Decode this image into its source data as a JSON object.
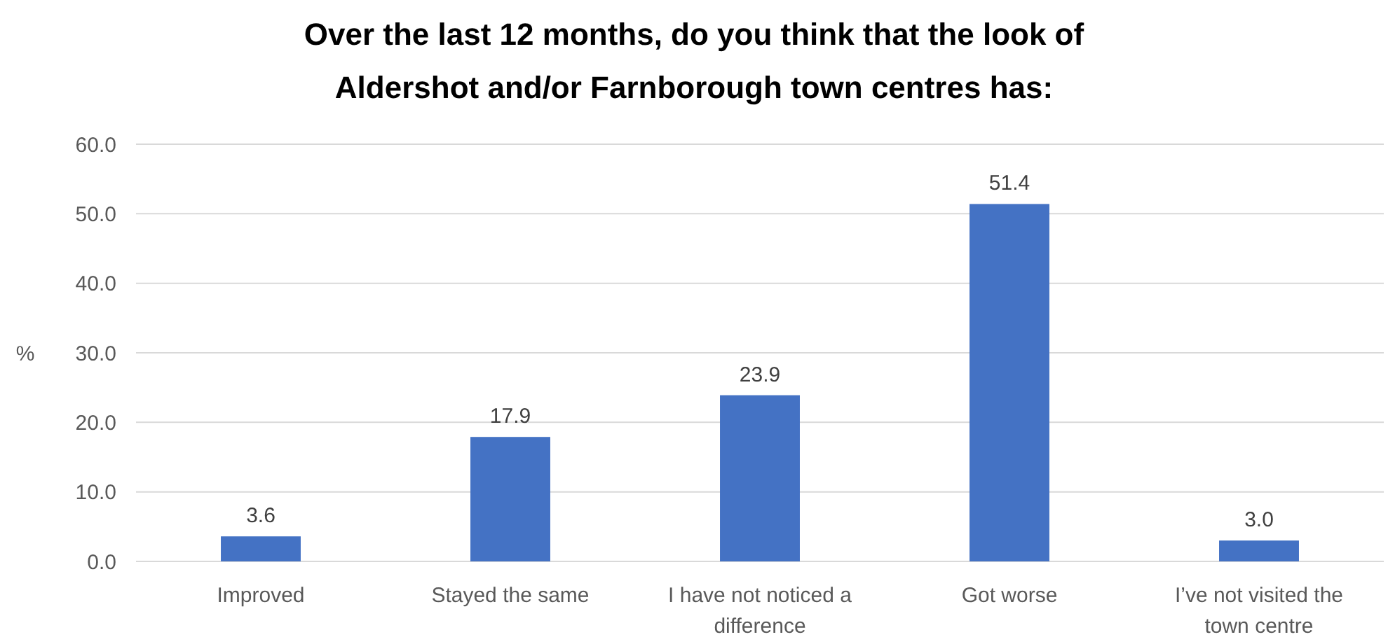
{
  "chart_data": {
    "type": "bar",
    "title": "Over the last 12 months, do you think that the look of Aldershot and/or Farnborough town centres has:",
    "ylabel": "%",
    "categories": [
      "Improved",
      "Stayed the same",
      "I have not noticed a difference",
      "Got worse",
      "I’ve not visited the town centre"
    ],
    "values": [
      3.6,
      17.9,
      23.9,
      51.4,
      3.0
    ],
    "value_labels": [
      "3.6",
      "17.9",
      "23.9",
      "51.4",
      "3.0"
    ],
    "color": "#4472c4",
    "ylim": [
      0,
      60
    ],
    "yticks": [
      {
        "value": 0,
        "label": "0.0"
      },
      {
        "value": 10,
        "label": "10.0"
      },
      {
        "value": 20,
        "label": "20.0"
      },
      {
        "value": 30,
        "label": "30.0"
      },
      {
        "value": 40,
        "label": "40.0"
      },
      {
        "value": 50,
        "label": "50.0"
      },
      {
        "value": 60,
        "label": "60.0"
      }
    ],
    "grid": "y"
  }
}
